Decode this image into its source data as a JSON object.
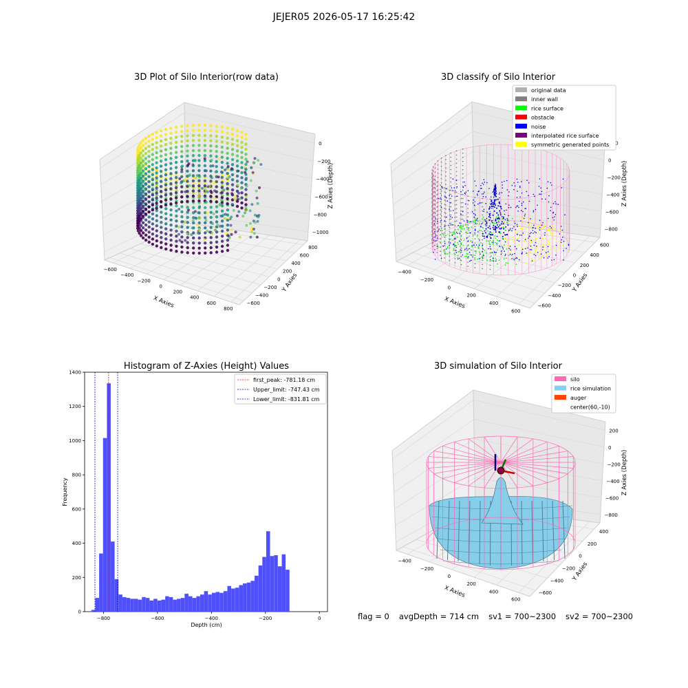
{
  "figure": {
    "title": "JEJER05 2026-05-17 16:25:42"
  },
  "chart_data": [
    {
      "type": "scatter",
      "title": "3D Plot of Silo Interior(row data)",
      "xlabel": "X Axies",
      "ylabel": "Y Axies",
      "zlabel": "Z Axies (Depth)",
      "x_ticks": [
        "−600",
        "−400",
        "−200",
        "0",
        "200",
        "400",
        "600",
        "800"
      ],
      "y_ticks": [
        "−600",
        "−400",
        "−200",
        "0",
        "200",
        "400",
        "600",
        "800"
      ],
      "z_ticks": [
        "0",
        "−200",
        "−400",
        "−600",
        "−800",
        "−1000"
      ],
      "colormap": "viridis"
    },
    {
      "type": "scatter",
      "title": "3D classify of Silo Interior",
      "xlabel": "X Axies",
      "ylabel": "Y Axies",
      "zlabel": "Z Axies (Depth)",
      "x_ticks": [
        "−400",
        "−200",
        "0",
        "200",
        "400",
        "600"
      ],
      "y_ticks": [
        "−600",
        "−400",
        "−200",
        "0",
        "200",
        "400",
        "600"
      ],
      "z_ticks": [
        "200",
        "0",
        "−200",
        "−400",
        "−600",
        "−800"
      ],
      "legend": [
        {
          "label": "original data",
          "color": "#b0b0b0"
        },
        {
          "label": "inner wall",
          "color": "#808080"
        },
        {
          "label": "rice surface",
          "color": "#00ff00"
        },
        {
          "label": "obstacle",
          "color": "#ff0000"
        },
        {
          "label": "noise",
          "color": "#0000ff"
        },
        {
          "label": "interpolated rice surface",
          "color": "#800080"
        },
        {
          "label": "symmetric generated points",
          "color": "#ffff00"
        }
      ]
    },
    {
      "type": "bar",
      "title": "Histogram of Z-Axies (Height) Values",
      "xlabel": "Depth (cm)",
      "ylabel": "Frequency",
      "xlim": [
        -870,
        30
      ],
      "ylim": [
        0,
        1400
      ],
      "x_ticks": [
        -800,
        -600,
        -400,
        -200,
        0
      ],
      "x_tick_labels": [
        "−800",
        "−600",
        "−400",
        "−200",
        "0"
      ],
      "y_ticks": [
        0,
        200,
        400,
        600,
        800,
        1000,
        1200,
        1400
      ],
      "bin_width": 14.4,
      "bin_start": -845,
      "values": [
        10,
        80,
        340,
        1015,
        1335,
        410,
        190,
        100,
        85,
        80,
        75,
        75,
        70,
        85,
        80,
        65,
        75,
        65,
        70,
        90,
        85,
        70,
        75,
        80,
        105,
        90,
        80,
        90,
        100,
        120,
        100,
        110,
        115,
        110,
        120,
        150,
        135,
        140,
        155,
        165,
        170,
        180,
        210,
        270,
        320,
        470,
        325,
        330,
        265,
        335,
        245
      ],
      "bar_color": "#4f4ffb",
      "vlines": [
        {
          "label": "first_peak: -781.18 cm",
          "x": -781.18,
          "color": "#ff0000"
        },
        {
          "label": "Upper_limit: -747.43 cm",
          "x": -747.43,
          "color": "#0000cc"
        },
        {
          "label": "Lower_limit: -831.81 cm",
          "x": -831.81,
          "color": "#0000cc"
        }
      ]
    },
    {
      "type": "surface",
      "title": "3D simulation of Silo Interior",
      "xlabel": "X Axies",
      "ylabel": "Y Axies",
      "zlabel": "Z Axies (Depth)",
      "x_ticks": [
        "−400",
        "−200",
        "0",
        "200",
        "400",
        "600"
      ],
      "y_ticks": [
        "−600",
        "−400",
        "−200",
        "0",
        "200",
        "400"
      ],
      "z_ticks": [
        "200",
        "0",
        "−200",
        "−400",
        "−600",
        "−800"
      ],
      "legend": [
        {
          "label": "silo",
          "color": "#ff69b4"
        },
        {
          "label": "rice simulation",
          "color": "#87ceeb"
        },
        {
          "label": "auger",
          "color": "#ff4500"
        },
        {
          "label": "center(60,-10)",
          "color": "#ffffff"
        }
      ]
    }
  ],
  "status": {
    "flag": "flag = 0",
    "avg_depth": "avgDepth = 714 cm",
    "sv1": "sv1 = 700~2300",
    "sv2": "sv2 = 700~2300"
  }
}
